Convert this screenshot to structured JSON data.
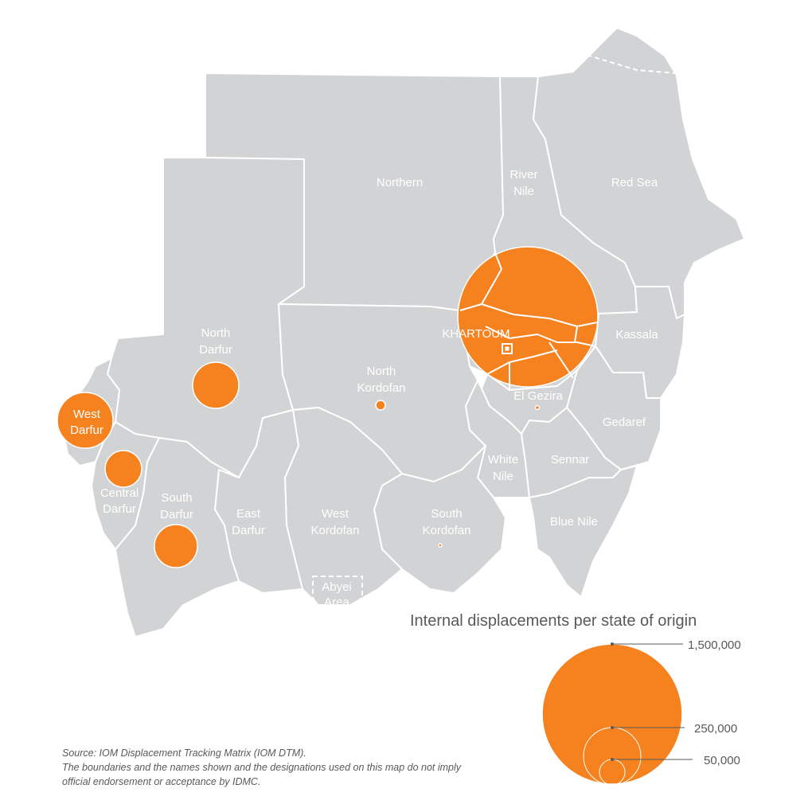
{
  "map": {
    "states": [
      {
        "id": "northern",
        "label_lines": [
          "Northern"
        ]
      },
      {
        "id": "river-nile",
        "label_lines": [
          "River",
          "Nile"
        ]
      },
      {
        "id": "red-sea",
        "label_lines": [
          "Red Sea"
        ]
      },
      {
        "id": "north-darfur",
        "label_lines": [
          "North",
          "Darfur"
        ]
      },
      {
        "id": "north-kordofan",
        "label_lines": [
          "North",
          "Kordofan"
        ]
      },
      {
        "id": "khartoum",
        "label_lines": [
          "KHARTOUM"
        ]
      },
      {
        "id": "kassala",
        "label_lines": [
          "Kassala"
        ]
      },
      {
        "id": "el-gezira",
        "label_lines": [
          "El Gezira"
        ]
      },
      {
        "id": "gedaref",
        "label_lines": [
          "Gedaref"
        ]
      },
      {
        "id": "west-darfur",
        "label_lines": [
          "West",
          "Darfur"
        ]
      },
      {
        "id": "central-darfur",
        "label_lines": [
          "Central",
          "Darfur"
        ]
      },
      {
        "id": "south-darfur",
        "label_lines": [
          "South",
          "Darfur"
        ]
      },
      {
        "id": "east-darfur",
        "label_lines": [
          "East",
          "Darfur"
        ]
      },
      {
        "id": "west-kordofan",
        "label_lines": [
          "West",
          "Kordofan"
        ]
      },
      {
        "id": "south-kordofan",
        "label_lines": [
          "South",
          "Kordofan"
        ]
      },
      {
        "id": "white-nile",
        "label_lines": [
          "White",
          "Nile"
        ]
      },
      {
        "id": "sennar",
        "label_lines": [
          "Sennar"
        ]
      },
      {
        "id": "blue-nile",
        "label_lines": [
          "Blue Nile"
        ]
      },
      {
        "id": "abyei",
        "label_lines": [
          "Abyei",
          "Area"
        ]
      }
    ],
    "bubble_color": "#f5821f",
    "land_color": "#d2d3d4"
  },
  "legend": {
    "title": "Internal displacements per state of origin",
    "values": [
      {
        "value": 1500000,
        "label": "1,500,000"
      },
      {
        "value": 250000,
        "label": "250,000"
      },
      {
        "value": 50000,
        "label": "50,000"
      }
    ]
  },
  "source": {
    "line1": "Source: IOM Displacement Tracking Matrix (IOM DTM).",
    "line2": "The boundaries and the names shown and the designations used on this map do not imply",
    "line3": "official endorsement or acceptance by IDMC."
  }
}
